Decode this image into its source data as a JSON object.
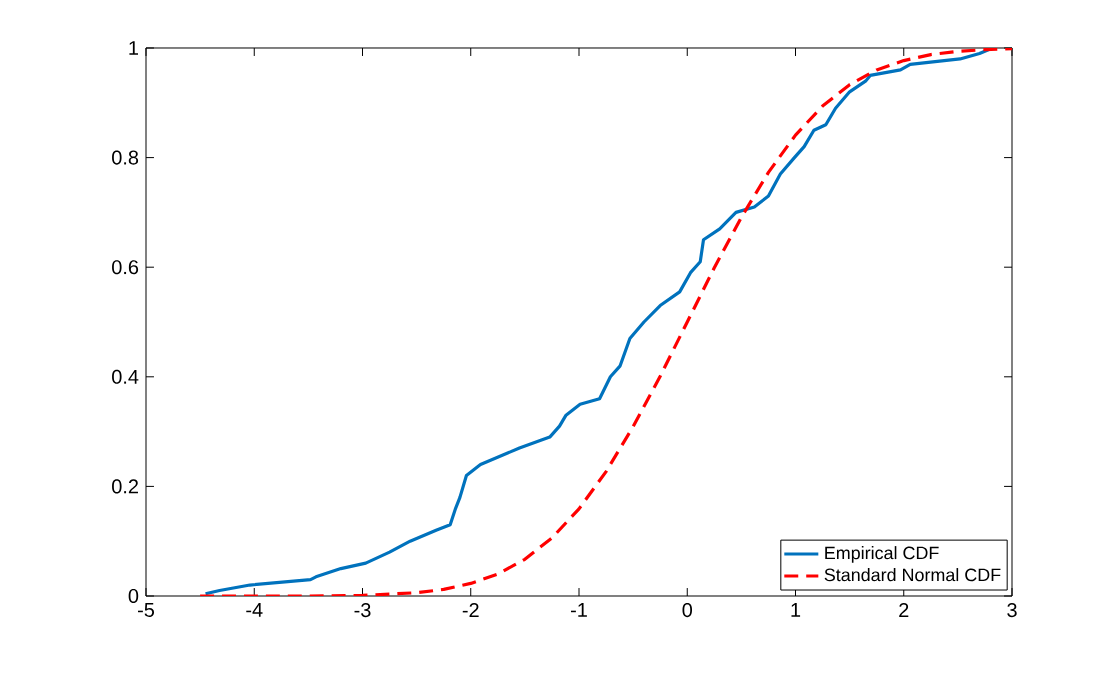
{
  "chart_data": {
    "type": "line",
    "xlim": [
      -5,
      3
    ],
    "ylim": [
      0,
      1
    ],
    "xticks": [
      -5,
      -4,
      -3,
      -2,
      -1,
      0,
      1,
      2,
      3
    ],
    "yticks": [
      0,
      0.2,
      0.4,
      0.6,
      0.8,
      1
    ],
    "legend": "bottom right",
    "grid": false,
    "series": [
      {
        "name": "Empirical CDF",
        "color": "#0072bd",
        "line_style": "solid",
        "x": [
          -4.45,
          -4.32,
          -4.04,
          -3.48,
          -3.43,
          -3.2,
          -2.97,
          -2.75,
          -2.56,
          -2.32,
          -2.19,
          -2.14,
          -2.1,
          -2.04,
          -1.91,
          -1.55,
          -1.27,
          -1.18,
          -1.12,
          -0.99,
          -0.81,
          -0.71,
          -0.62,
          -0.53,
          -0.4,
          -0.25,
          -0.07,
          0.03,
          0.12,
          0.15,
          0.3,
          0.45,
          0.62,
          0.75,
          0.86,
          0.99,
          1.08,
          1.17,
          1.28,
          1.37,
          1.5,
          1.65,
          1.69,
          1.97,
          2.06,
          2.52,
          2.7,
          2.82
        ],
        "values": [
          0.004,
          0.01,
          0.02,
          0.03,
          0.035,
          0.05,
          0.06,
          0.08,
          0.1,
          0.12,
          0.13,
          0.16,
          0.18,
          0.22,
          0.24,
          0.27,
          0.29,
          0.31,
          0.33,
          0.35,
          0.36,
          0.4,
          0.42,
          0.47,
          0.5,
          0.53,
          0.555,
          0.59,
          0.61,
          0.65,
          0.67,
          0.7,
          0.71,
          0.73,
          0.77,
          0.8,
          0.82,
          0.85,
          0.86,
          0.89,
          0.92,
          0.94,
          0.95,
          0.96,
          0.97,
          0.98,
          0.99,
          1.0
        ]
      },
      {
        "name": "Standard Normal CDF",
        "color": "#ff0000",
        "line_style": "dashed",
        "x": [
          -4.5,
          -4.0,
          -3.5,
          -3.0,
          -2.5,
          -2.25,
          -2.0,
          -1.75,
          -1.5,
          -1.25,
          -1.0,
          -0.75,
          -0.5,
          -0.25,
          0.0,
          0.25,
          0.5,
          0.75,
          1.0,
          1.25,
          1.5,
          1.75,
          2.0,
          2.25,
          2.5,
          2.75,
          3.0
        ],
        "values": [
          0.0,
          0.0,
          0.0,
          0.001,
          0.006,
          0.012,
          0.023,
          0.04,
          0.067,
          0.106,
          0.159,
          0.227,
          0.309,
          0.401,
          0.5,
          0.599,
          0.691,
          0.773,
          0.841,
          0.894,
          0.933,
          0.96,
          0.977,
          0.988,
          0.994,
          0.997,
          0.999
        ]
      }
    ]
  }
}
